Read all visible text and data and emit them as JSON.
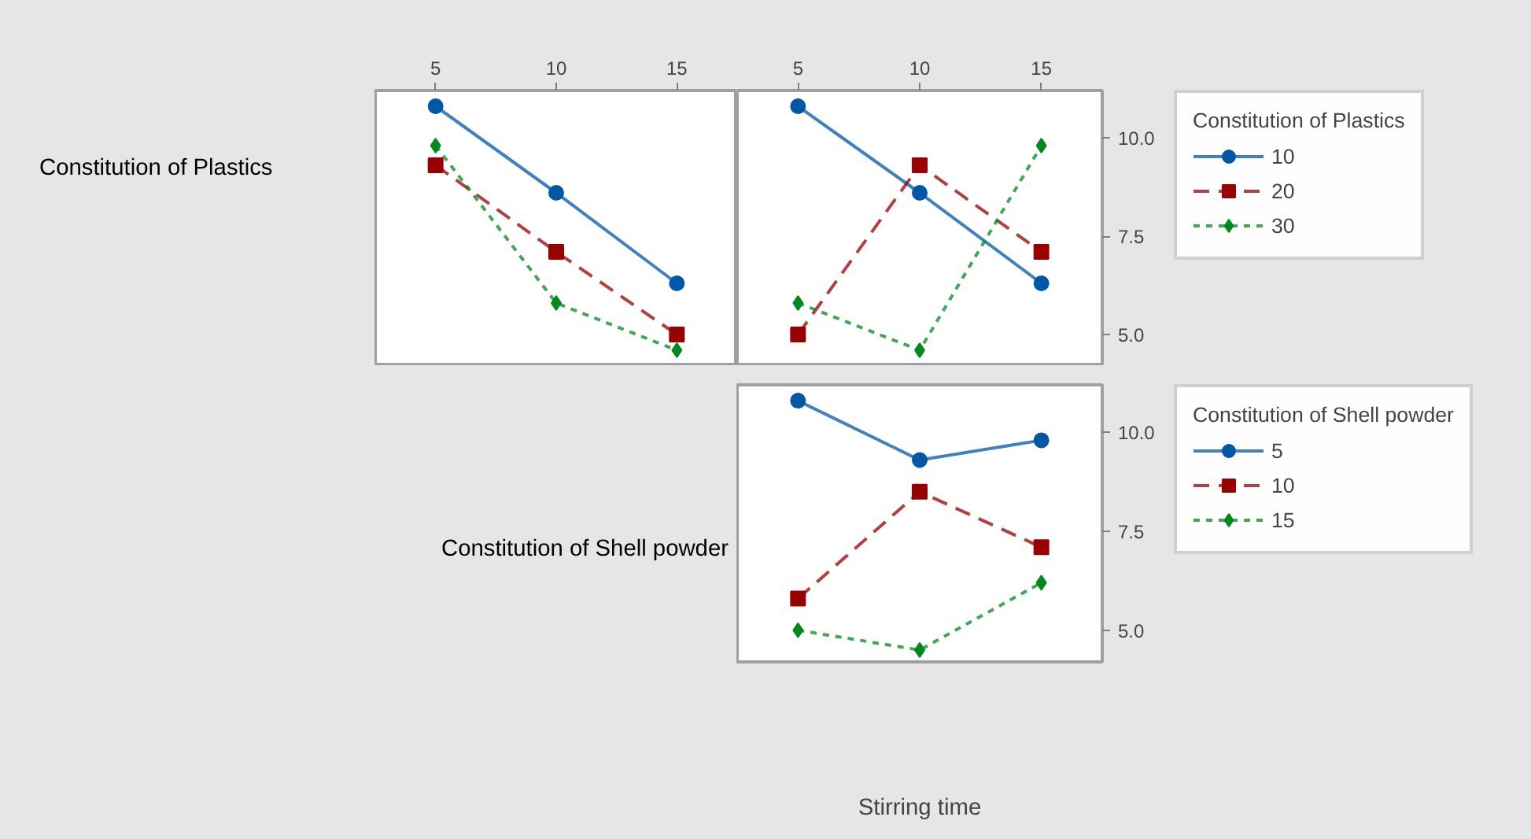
{
  "chart_data": [
    {
      "type": "line",
      "ylabel": "Constitution of Plastics",
      "x": [
        5,
        10,
        15
      ],
      "xlim": [
        2.5,
        17.5
      ],
      "xticks": [
        5,
        10,
        15
      ],
      "ylim": [
        4.2,
        11.2
      ],
      "tick_labels": "x",
      "grid": false,
      "legend": false,
      "series": [
        {
          "color": "#0057a8",
          "marker": "circle",
          "line_style": "solid",
          "values": [
            10.8,
            8.6,
            6.3
          ]
        },
        {
          "color": "#990000",
          "marker": "square",
          "line_style": "dashed",
          "values": [
            9.3,
            7.1,
            5.0
          ]
        },
        {
          "color": "#008a1e",
          "marker": "diamond",
          "line_style": "dotted",
          "values": [
            9.8,
            5.8,
            4.6
          ]
        }
      ]
    },
    {
      "type": "line",
      "x": [
        5,
        10,
        15
      ],
      "xlim": [
        2.5,
        17.5
      ],
      "xticks": [
        5,
        10,
        15
      ],
      "ylim": [
        4.2,
        11.2
      ],
      "yticks": [
        {
          "value": 5,
          "label": "5.0"
        },
        {
          "value": 7.5,
          "label": "7.5"
        },
        {
          "value": 10,
          "label": "10.0"
        }
      ],
      "grid": false,
      "legend": "right",
      "legend_title": "Constitution of Plastics",
      "series": [
        {
          "name": "10",
          "color": "#0057a8",
          "marker": "circle",
          "line_style": "solid",
          "values": [
            10.8,
            8.6,
            6.3
          ]
        },
        {
          "name": "20",
          "color": "#990000",
          "marker": "square",
          "line_style": "dashed",
          "values": [
            5.0,
            9.3,
            7.1
          ]
        },
        {
          "name": "30",
          "color": "#008a1e",
          "marker": "diamond",
          "line_style": "dotted",
          "values": [
            5.8,
            4.6,
            9.8
          ]
        }
      ]
    },
    {
      "type": "line",
      "ylabel": "Constitution of Shell powder",
      "xlabel": "Stirring time",
      "x": [
        5,
        10,
        15
      ],
      "xlim": [
        2.5,
        17.5
      ],
      "ylim": [
        4.2,
        11.2
      ],
      "yticks": [
        {
          "value": 5,
          "label": "5.0"
        },
        {
          "value": 7.5,
          "label": "7.5"
        },
        {
          "value": 10,
          "label": "10.0"
        }
      ],
      "tick_labels": "y",
      "grid": false,
      "legend": "right",
      "legend_title": "Constitution of Shell powder",
      "series": [
        {
          "name": "5",
          "color": "#0057a8",
          "marker": "circle",
          "line_style": "solid",
          "values": [
            10.8,
            9.3,
            9.8
          ]
        },
        {
          "name": "10",
          "color": "#990000",
          "marker": "square",
          "line_style": "dashed",
          "values": [
            5.8,
            8.5,
            7.1
          ]
        },
        {
          "name": "15",
          "color": "#008a1e",
          "marker": "diamond",
          "line_style": "dotted",
          "values": [
            5.0,
            4.5,
            6.2
          ]
        }
      ]
    }
  ]
}
